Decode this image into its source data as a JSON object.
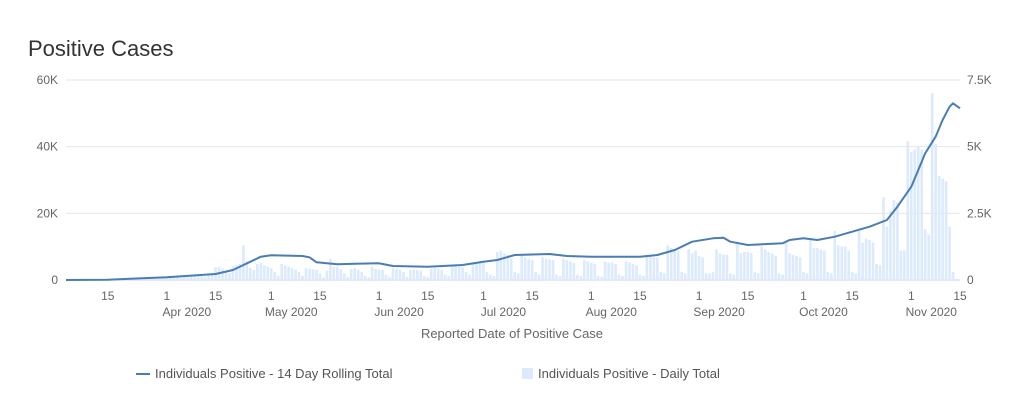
{
  "title": "Positive Cases",
  "chart_data": {
    "type": "bar+line",
    "title": "Positive Cases",
    "xlabel": "Reported Date of Positive Case",
    "x_start": "2020-03-03",
    "x_end": "2020-11-15",
    "x_ticks": [
      {
        "date": "2020-03-15",
        "day": "15",
        "month": ""
      },
      {
        "date": "2020-04-01",
        "day": "1",
        "month": "Apr 2020"
      },
      {
        "date": "2020-04-15",
        "day": "15",
        "month": ""
      },
      {
        "date": "2020-05-01",
        "day": "1",
        "month": "May 2020"
      },
      {
        "date": "2020-05-15",
        "day": "15",
        "month": ""
      },
      {
        "date": "2020-06-01",
        "day": "1",
        "month": "Jun 2020"
      },
      {
        "date": "2020-06-15",
        "day": "15",
        "month": ""
      },
      {
        "date": "2020-07-01",
        "day": "1",
        "month": "Jul 2020"
      },
      {
        "date": "2020-07-15",
        "day": "15",
        "month": ""
      },
      {
        "date": "2020-08-01",
        "day": "1",
        "month": "Aug 2020"
      },
      {
        "date": "2020-08-15",
        "day": "15",
        "month": ""
      },
      {
        "date": "2020-09-01",
        "day": "1",
        "month": "Sep 2020"
      },
      {
        "date": "2020-09-15",
        "day": "15",
        "month": ""
      },
      {
        "date": "2020-10-01",
        "day": "1",
        "month": "Oct 2020"
      },
      {
        "date": "2020-10-15",
        "day": "15",
        "month": ""
      },
      {
        "date": "2020-11-01",
        "day": "1",
        "month": "Nov 2020"
      },
      {
        "date": "2020-11-15",
        "day": "15",
        "month": ""
      }
    ],
    "y_left": {
      "range": [
        0,
        60000
      ],
      "ticks": [
        {
          "v": 0,
          "label": "0"
        },
        {
          "v": 20000,
          "label": "20K"
        },
        {
          "v": 40000,
          "label": "40K"
        },
        {
          "v": 60000,
          "label": "60K"
        }
      ]
    },
    "y_right": {
      "range": [
        0,
        7500
      ],
      "ticks": [
        {
          "v": 0,
          "label": "0"
        },
        {
          "v": 2500,
          "label": "2.5K"
        },
        {
          "v": 5000,
          "label": "5K"
        },
        {
          "v": 7500,
          "label": "7.5K"
        }
      ]
    },
    "grid": true,
    "legend_position": "bottom",
    "series": [
      {
        "name": "Individuals Positive - 14 Day Rolling Total",
        "type": "line",
        "axis": "left",
        "color": "#4a7db3",
        "points": [
          [
            "2020-03-03",
            0
          ],
          [
            "2020-03-15",
            100
          ],
          [
            "2020-04-01",
            800
          ],
          [
            "2020-04-15",
            1800
          ],
          [
            "2020-04-20",
            3000
          ],
          [
            "2020-04-25",
            5500
          ],
          [
            "2020-04-28",
            7000
          ],
          [
            "2020-05-01",
            7400
          ],
          [
            "2020-05-10",
            7200
          ],
          [
            "2020-05-12",
            6800
          ],
          [
            "2020-05-14",
            5300
          ],
          [
            "2020-05-20",
            4700
          ],
          [
            "2020-05-25",
            4900
          ],
          [
            "2020-06-01",
            5000
          ],
          [
            "2020-06-05",
            4200
          ],
          [
            "2020-06-15",
            4000
          ],
          [
            "2020-06-25",
            4500
          ],
          [
            "2020-07-01",
            5500
          ],
          [
            "2020-07-05",
            6000
          ],
          [
            "2020-07-10",
            7500
          ],
          [
            "2020-07-20",
            7800
          ],
          [
            "2020-07-25",
            7200
          ],
          [
            "2020-08-01",
            7000
          ],
          [
            "2020-08-15",
            7000
          ],
          [
            "2020-08-20",
            7500
          ],
          [
            "2020-08-25",
            9000
          ],
          [
            "2020-08-30",
            11500
          ],
          [
            "2020-09-05",
            12500
          ],
          [
            "2020-09-08",
            12700
          ],
          [
            "2020-09-10",
            11500
          ],
          [
            "2020-09-15",
            10500
          ],
          [
            "2020-09-25",
            11000
          ],
          [
            "2020-09-27",
            12000
          ],
          [
            "2020-10-01",
            12500
          ],
          [
            "2020-10-05",
            12000
          ],
          [
            "2020-10-10",
            13000
          ],
          [
            "2020-10-15",
            14500
          ],
          [
            "2020-10-20",
            16000
          ],
          [
            "2020-10-25",
            18000
          ],
          [
            "2020-10-28",
            22000
          ],
          [
            "2020-11-01",
            28000
          ],
          [
            "2020-11-03",
            33000
          ],
          [
            "2020-11-05",
            38000
          ],
          [
            "2020-11-08",
            43000
          ],
          [
            "2020-11-10",
            48000
          ],
          [
            "2020-11-12",
            52000
          ],
          [
            "2020-11-13",
            53000
          ],
          [
            "2020-11-15",
            51500
          ]
        ]
      },
      {
        "name": "Individuals Positive - Daily Total",
        "type": "bar",
        "axis": "right",
        "color": "#dbeafc",
        "values": [
          0,
          0,
          0,
          2,
          3,
          5,
          4,
          6,
          8,
          10,
          12,
          8,
          6,
          15,
          20,
          25,
          30,
          35,
          25,
          20,
          40,
          50,
          60,
          70,
          80,
          60,
          50,
          90,
          100,
          110,
          130,
          140,
          100,
          90,
          150,
          160,
          170,
          180,
          190,
          140,
          120,
          200,
          250,
          480,
          500,
          420,
          300,
          250,
          520,
          560,
          600,
          1300,
          700,
          450,
          380,
          600,
          650,
          550,
          500,
          450,
          300,
          150,
          600,
          550,
          500,
          450,
          380,
          300,
          150,
          450,
          420,
          400,
          380,
          250,
          100,
          350,
          800,
          500,
          480,
          400,
          250,
          120,
          420,
          450,
          380,
          300,
          150,
          100,
          500,
          420,
          400,
          380,
          200,
          100,
          450,
          420,
          400,
          300,
          120,
          380,
          400,
          380,
          350,
          150,
          100,
          420,
          450,
          420,
          380,
          200,
          150,
          500,
          520,
          500,
          480,
          300,
          200,
          600,
          650,
          700,
          650,
          300,
          200,
          150,
          1050,
          1100,
          1000,
          950,
          800,
          300,
          250,
          900,
          850,
          800,
          750,
          300,
          200,
          850,
          800,
          780,
          750,
          200,
          150,
          800,
          750,
          700,
          650,
          200,
          150,
          750,
          700,
          650,
          600,
          150,
          120,
          700,
          650,
          650,
          600,
          200,
          150,
          700,
          650,
          600,
          550,
          200,
          150,
          950,
          900,
          850,
          850,
          300,
          250,
          1300,
          1200,
          1150,
          1100,
          300,
          250,
          1150,
          1000,
          1100,
          900,
          850,
          250,
          250,
          300,
          1150,
          1000,
          950,
          950,
          250,
          200,
          1450,
          1000,
          1050,
          1050,
          1000,
          300,
          250,
          1250,
          1150,
          1050,
          1000,
          900,
          250,
          200,
          1450,
          1000,
          950,
          900,
          850,
          300,
          250,
          1550,
          1200,
          1200,
          1150,
          1100,
          300,
          250,
          1850,
          1300,
          1250,
          1250,
          1100,
          300,
          250,
          1850,
          1400,
          1550,
          1500,
          1400,
          600,
          550,
          3100,
          2000,
          2600,
          3000,
          2900,
          1100,
          1100,
          5200,
          4800,
          4900,
          5000,
          4900,
          1900,
          1700,
          7000,
          5100,
          3900,
          3800,
          3700,
          2000,
          300,
          50,
          0
        ]
      }
    ]
  }
}
